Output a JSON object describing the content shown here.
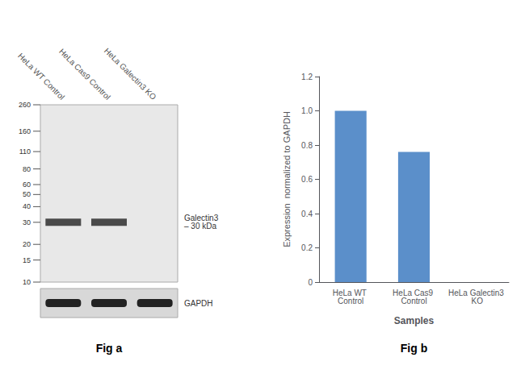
{
  "chart_data": [
    {
      "type": "scatter",
      "categories": [
        "HeLa WT Control",
        "HeLa Cas9 Control",
        "HeLa Galectin3 KO"
      ],
      "values": [
        30,
        30,
        null
      ],
      "color": "#222222",
      "log": "y",
      "ylim": [
        10,
        260
      ],
      "yticks": [
        260,
        160,
        110,
        80,
        60,
        50,
        40,
        30,
        20,
        15,
        10
      ],
      "grid": false,
      "annotations": [
        "Galectin3\n– 30 kDa",
        "GAPDH",
        "Fig a"
      ]
    },
    {
      "type": "bar",
      "categories": [
        "HeLa WT Control",
        "HeLa Cas9 Control",
        "HeLa Galectin3 KO"
      ],
      "values": [
        1.0,
        0.76,
        0.0
      ],
      "color": "#5b8fca",
      "xlabel": "Samples",
      "ylabel": "Expression  normalized to GAPDH",
      "ylim": [
        0,
        1.2
      ],
      "yticks": [
        0,
        0.2,
        0.4,
        0.6,
        0.8,
        {
          "value": 1.0,
          "label": "1.0"
        },
        1.2
      ],
      "grid": false,
      "annotations": [
        "Fig b"
      ]
    }
  ]
}
